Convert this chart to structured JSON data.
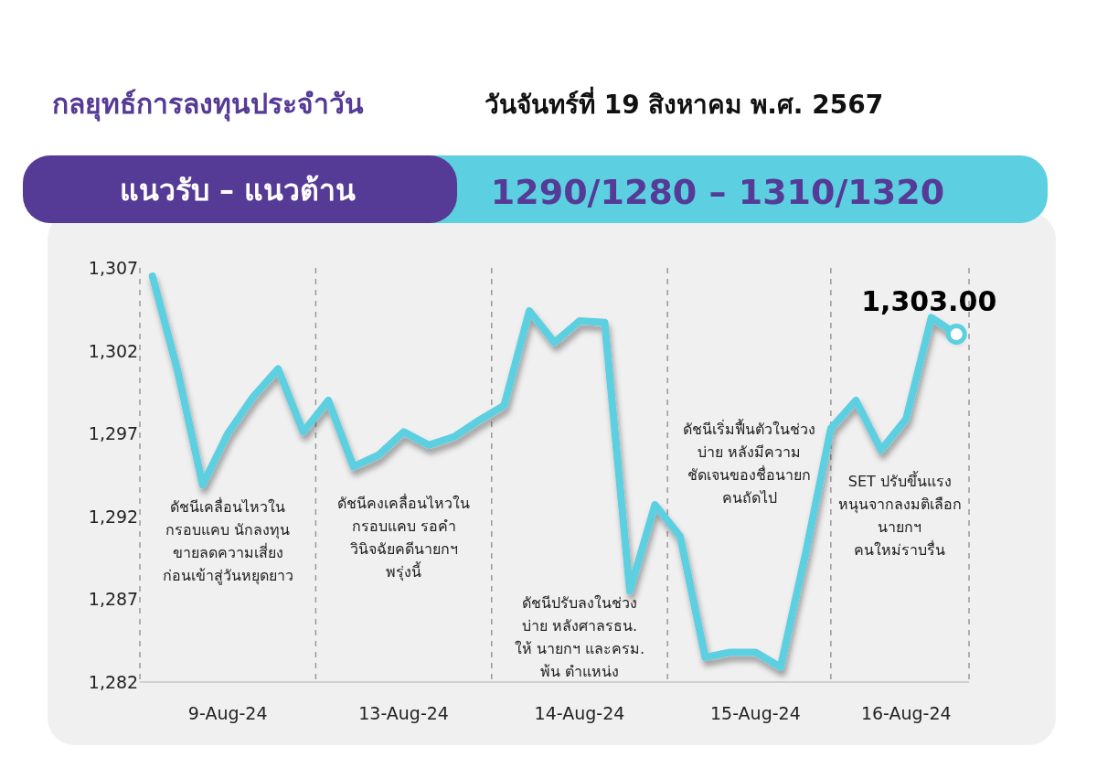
{
  "chart_data": {
    "type": "line",
    "title": "กลยุทธ์การลงทุนประจำวัน",
    "subtitle": "วันจันทร์ที่ 19 สิงหาคม พ.ศ. 2567",
    "annotations": [
      "แนวรับ – แนวต้าน",
      "1290/1280  – 1310/1320",
      "ดัชนีเคลื่อนไหวใน กรอบแคบ นักลงทุน ขายลดความเสี่ยง ก่อนเข้าสู่วันหยุดยาว",
      "ดัชนีคงเคลื่อนไหวใน กรอบแคบ รอคำ วินิจฉัยคดีนายกฯ พรุ่งนี้",
      "ดัชนีปรับลงในช่วง บ่าย หลังศาลรธน. ให้ นายกฯ และครม. พ้น ตำแหน่ง",
      "ดัชนีเริ่มฟื้นตัวในช่วง บ่าย หลังมีความ ชัดเจนของชื่อนายก คนถัดไป",
      "SET ปรับขึ้นแรง หนุนจากลงมติเลือก นายกฯ คนใหม่ราบรื่น"
    ],
    "categories": [
      null,
      null,
      null,
      "9-Aug-24",
      null,
      null,
      null,
      null,
      null,
      null,
      "13-Aug-24",
      null,
      null,
      null,
      null,
      null,
      null,
      "14-Aug-24",
      null,
      null,
      null,
      null,
      null,
      null,
      "15-Aug-24",
      null,
      null,
      null,
      null,
      null,
      "16-Aug-24",
      null,
      null
    ],
    "series": [
      {
        "color": "#5ccfe0",
        "values": [
          1306.5,
          1300.8,
          1293.9,
          1297.0,
          1299.2,
          1300.9,
          1297.1,
          1299.0,
          1295.0,
          1295.7,
          1297.1,
          1296.3,
          1296.8,
          1297.8,
          1298.7,
          1304.4,
          1302.5,
          1303.8,
          1303.7,
          1287.5,
          1292.7,
          1290.8,
          1283.5,
          1283.8,
          1283.8,
          1282.9,
          1289.8,
          1297.3,
          1299.0,
          1296.0,
          1297.9,
          1304.0,
          1303.0
        ],
        "value_labels": [
          null,
          null,
          null,
          null,
          null,
          null,
          null,
          null,
          null,
          null,
          null,
          null,
          null,
          null,
          null,
          null,
          null,
          null,
          null,
          null,
          null,
          null,
          null,
          null,
          null,
          null,
          null,
          null,
          null,
          null,
          null,
          null,
          "1,303.00"
        ]
      }
    ],
    "ylim": [
      1282,
      1307
    ],
    "yticks": [
      {
        "value": 1282,
        "label": "1,282"
      },
      {
        "value": 1287,
        "label": "1,287"
      },
      {
        "value": 1292,
        "label": "1,292"
      },
      {
        "value": 1297,
        "label": "1,297"
      },
      {
        "value": 1302,
        "label": "1,302"
      },
      {
        "value": 1307,
        "label": "1,307"
      }
    ],
    "grid": "x",
    "line_style": "solid"
  }
}
